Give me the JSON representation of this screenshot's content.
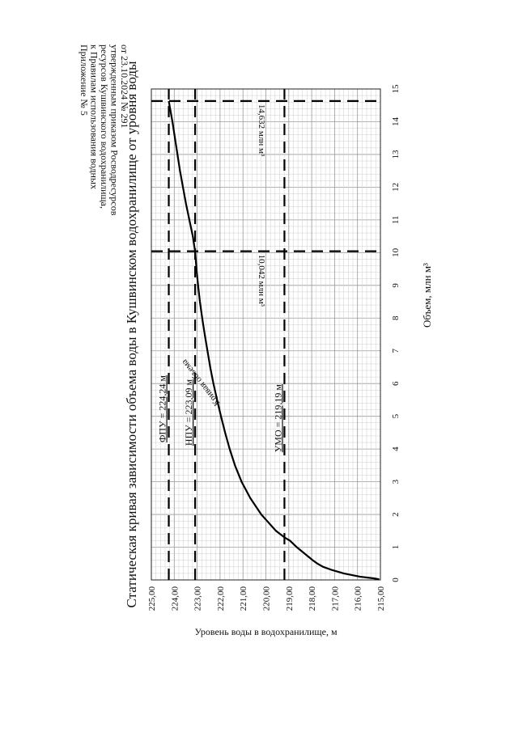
{
  "header": {
    "lines": [
      "Приложение № 5",
      "к  Правилам    использования    водных",
      "ресурсов  Кушвинского  водохранилища,",
      "утвержденным приказом Росводресурсов",
      "от 23.10.2024 № 291"
    ]
  },
  "chart_data": {
    "type": "line",
    "title": "Статическая кривая зависимости объема воды в Кушвинском водохранилище от уровня воды",
    "xlabel": "Объем, млн м³",
    "ylabel": "Уровень воды в водохранилище, м",
    "xlim": [
      0,
      15
    ],
    "ylim": [
      215,
      225
    ],
    "x_ticks": [
      "0",
      "1",
      "2",
      "3",
      "4",
      "5",
      "6",
      "7",
      "8",
      "9",
      "10",
      "11",
      "12",
      "13",
      "14",
      "15"
    ],
    "y_ticks": [
      "215,00",
      "216,00",
      "217,00",
      "218,00",
      "219,00",
      "220,00",
      "221,00",
      "222,00",
      "223,00",
      "224,00",
      "225,00"
    ],
    "grid": true,
    "series": [
      {
        "name": "Кривая объема",
        "color": "#000000",
        "x": [
          0.02,
          0.05,
          0.1,
          0.2,
          0.3,
          0.4,
          0.5,
          0.6,
          0.8,
          1.0,
          1.2,
          1.3,
          1.5,
          2.0,
          2.5,
          3.0,
          3.5,
          4.0,
          4.5,
          5.0,
          5.5,
          6.0,
          6.5,
          7.0,
          7.5,
          8.0,
          8.5,
          9.0,
          9.5,
          10.042,
          10.5,
          11.0,
          11.5,
          12.0,
          12.5,
          13.0,
          13.5,
          14.0,
          14.632
        ],
        "y": [
          215.05,
          215.3,
          215.9,
          216.6,
          217.1,
          217.5,
          217.75,
          217.95,
          218.3,
          218.65,
          218.95,
          219.19,
          219.56,
          220.2,
          220.68,
          221.06,
          221.35,
          221.58,
          221.78,
          221.96,
          222.13,
          222.29,
          222.43,
          222.55,
          222.67,
          222.78,
          222.88,
          222.96,
          223.03,
          223.09,
          223.19,
          223.34,
          223.49,
          223.62,
          223.75,
          223.86,
          223.97,
          224.08,
          224.24
        ]
      }
    ],
    "level_lines": [
      {
        "label": "ФПУ = 224,24 м",
        "y": 224.24,
        "label_at_x": 4.2
      },
      {
        "label": "НПУ = 223,09 м",
        "y": 223.09,
        "label_at_x": 4.1
      },
      {
        "label": "УМО = 219,19 м",
        "y": 219.19,
        "label_at_x": 3.9
      }
    ],
    "volume_lines": [
      {
        "label": "10,042 млн м³",
        "x": 10.042
      },
      {
        "label": "14,632 млн м³",
        "x": 14.632
      }
    ],
    "curve_label": {
      "text": "Кривая объема",
      "at_x": 5.4,
      "at_y": 222.0
    }
  }
}
